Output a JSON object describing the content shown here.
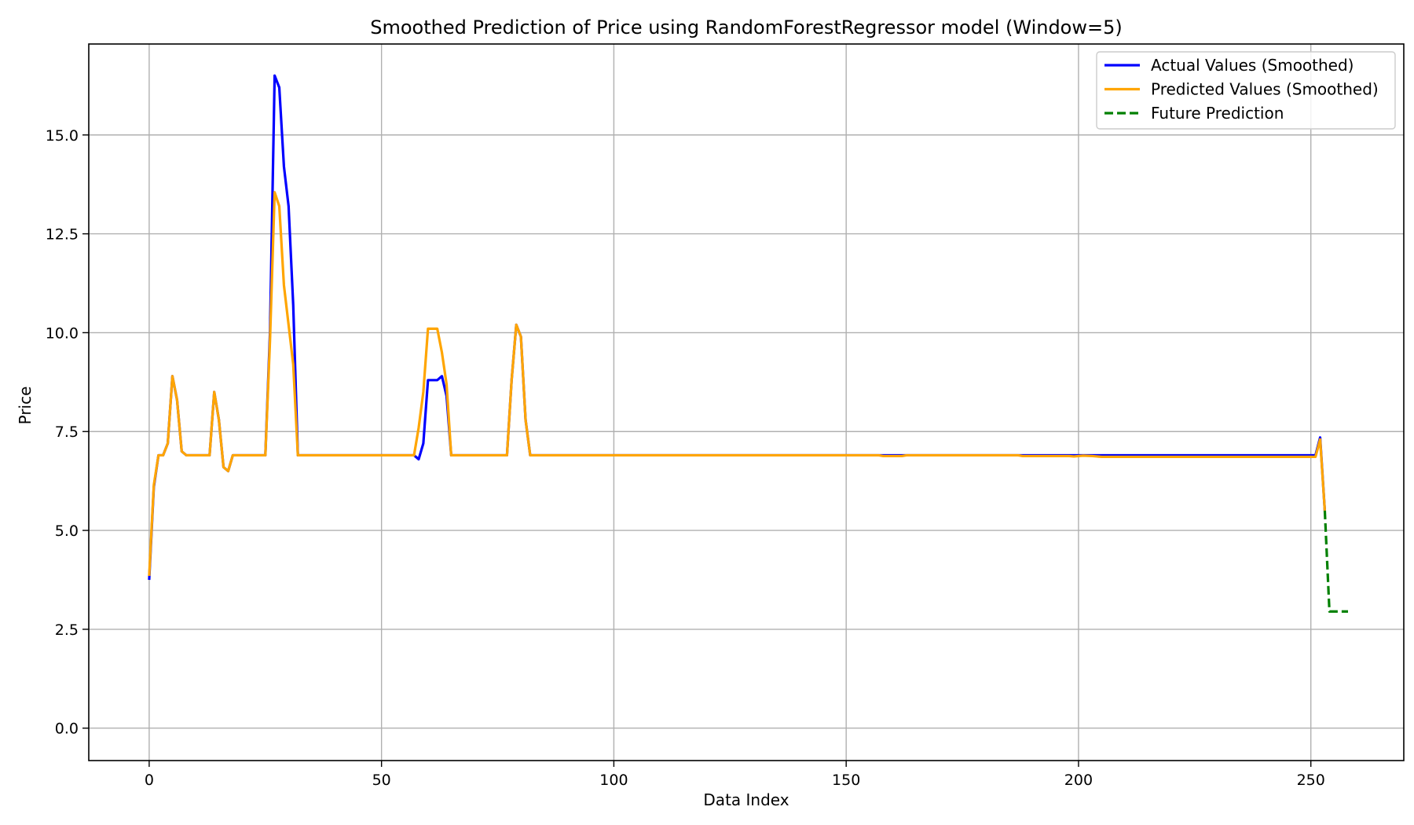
{
  "chart_data": {
    "type": "line",
    "title": "Smoothed Prediction of Price using RandomForestRegressor model (Window=5)",
    "xlabel": "Data Index",
    "ylabel": "Price",
    "xlim": [
      -13,
      270
    ],
    "ylim": [
      -0.82,
      17.3
    ],
    "xticks": [
      0,
      50,
      100,
      150,
      200,
      250
    ],
    "xtick_labels": [
      "0",
      "50",
      "100",
      "150",
      "200",
      "250"
    ],
    "yticks": [
      0,
      2.5,
      5,
      7.5,
      10,
      12.5,
      15
    ],
    "ytick_labels": [
      "0.0",
      "2.5",
      "5.0",
      "7.5",
      "10.0",
      "12.5",
      "15.0"
    ],
    "grid": true,
    "legend_position": "top-right",
    "series": [
      {
        "name": "Actual Values (Smoothed)",
        "color": "#0000ff",
        "style": "solid",
        "points": [
          [
            0,
            3.75
          ],
          [
            1,
            6.1
          ],
          [
            2,
            6.9
          ],
          [
            3,
            6.9
          ],
          [
            4,
            7.2
          ],
          [
            5,
            8.9
          ],
          [
            6,
            8.3
          ],
          [
            7,
            7.0
          ],
          [
            8,
            6.9
          ],
          [
            9,
            6.9
          ],
          [
            10,
            6.9
          ],
          [
            11,
            6.9
          ],
          [
            12,
            6.9
          ],
          [
            13,
            6.9
          ],
          [
            14,
            8.5
          ],
          [
            15,
            7.8
          ],
          [
            16,
            6.6
          ],
          [
            17,
            6.5
          ],
          [
            18,
            6.9
          ],
          [
            19,
            6.9
          ],
          [
            20,
            6.9
          ],
          [
            21,
            6.9
          ],
          [
            22,
            6.9
          ],
          [
            23,
            6.9
          ],
          [
            24,
            6.9
          ],
          [
            25,
            6.9
          ],
          [
            26,
            10.0
          ],
          [
            27,
            16.5
          ],
          [
            28,
            16.2
          ],
          [
            29,
            14.2
          ],
          [
            30,
            13.2
          ],
          [
            31,
            10.7
          ],
          [
            32,
            6.9
          ],
          [
            33,
            6.9
          ],
          [
            40,
            6.9
          ],
          [
            50,
            6.9
          ],
          [
            57,
            6.9
          ],
          [
            58,
            6.8
          ],
          [
            59,
            7.2
          ],
          [
            60,
            8.8
          ],
          [
            61,
            8.8
          ],
          [
            62,
            8.8
          ],
          [
            63,
            8.9
          ],
          [
            64,
            8.4
          ],
          [
            65,
            6.9
          ],
          [
            66,
            6.9
          ],
          [
            70,
            6.9
          ],
          [
            77,
            6.9
          ],
          [
            78,
            8.8
          ],
          [
            79,
            10.2
          ],
          [
            80,
            9.9
          ],
          [
            81,
            7.8
          ],
          [
            82,
            6.9
          ],
          [
            83,
            6.9
          ],
          [
            100,
            6.9
          ],
          [
            150,
            6.9
          ],
          [
            200,
            6.9
          ],
          [
            251,
            6.9
          ],
          [
            252,
            7.35
          ],
          [
            253,
            5.5
          ]
        ]
      },
      {
        "name": "Predicted Values (Smoothed)",
        "color": "#ffa500",
        "style": "solid",
        "points": [
          [
            0,
            3.85
          ],
          [
            1,
            6.15
          ],
          [
            2,
            6.9
          ],
          [
            3,
            6.9
          ],
          [
            4,
            7.2
          ],
          [
            5,
            8.9
          ],
          [
            6,
            8.3
          ],
          [
            7,
            7.0
          ],
          [
            8,
            6.9
          ],
          [
            9,
            6.9
          ],
          [
            10,
            6.9
          ],
          [
            11,
            6.9
          ],
          [
            12,
            6.9
          ],
          [
            13,
            6.9
          ],
          [
            14,
            8.5
          ],
          [
            15,
            7.8
          ],
          [
            16,
            6.6
          ],
          [
            17,
            6.5
          ],
          [
            18,
            6.9
          ],
          [
            19,
            6.9
          ],
          [
            20,
            6.9
          ],
          [
            21,
            6.9
          ],
          [
            22,
            6.9
          ],
          [
            23,
            6.9
          ],
          [
            24,
            6.9
          ],
          [
            25,
            6.9
          ],
          [
            26,
            9.8
          ],
          [
            27,
            13.55
          ],
          [
            28,
            13.2
          ],
          [
            29,
            11.2
          ],
          [
            30,
            10.2
          ],
          [
            31,
            9.2
          ],
          [
            32,
            6.9
          ],
          [
            33,
            6.9
          ],
          [
            40,
            6.9
          ],
          [
            50,
            6.9
          ],
          [
            57,
            6.9
          ],
          [
            58,
            7.6
          ],
          [
            59,
            8.5
          ],
          [
            60,
            10.1
          ],
          [
            61,
            10.1
          ],
          [
            62,
            10.1
          ],
          [
            63,
            9.5
          ],
          [
            64,
            8.7
          ],
          [
            65,
            6.9
          ],
          [
            66,
            6.9
          ],
          [
            70,
            6.9
          ],
          [
            77,
            6.9
          ],
          [
            78,
            8.8
          ],
          [
            79,
            10.2
          ],
          [
            80,
            9.9
          ],
          [
            81,
            7.8
          ],
          [
            82,
            6.9
          ],
          [
            83,
            6.9
          ],
          [
            100,
            6.9
          ],
          [
            150,
            6.9
          ],
          [
            157,
            6.9
          ],
          [
            158,
            6.88
          ],
          [
            162,
            6.88
          ],
          [
            163,
            6.9
          ],
          [
            187,
            6.9
          ],
          [
            188,
            6.88
          ],
          [
            198,
            6.88
          ],
          [
            199,
            6.87
          ],
          [
            201,
            6.89
          ],
          [
            203,
            6.88
          ],
          [
            205,
            6.86
          ],
          [
            251,
            6.86
          ],
          [
            252,
            7.3
          ],
          [
            253,
            5.5
          ]
        ]
      },
      {
        "name": "Future Prediction",
        "color": "#008000",
        "style": "dashed",
        "points": [
          [
            253,
            5.5
          ],
          [
            254,
            2.95
          ],
          [
            255,
            2.95
          ],
          [
            256,
            2.95
          ],
          [
            257,
            2.95
          ],
          [
            258,
            2.95
          ]
        ]
      }
    ]
  }
}
